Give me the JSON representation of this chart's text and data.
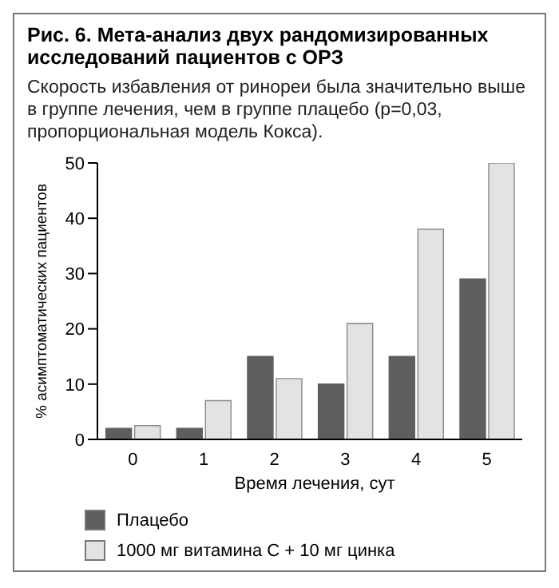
{
  "chart_data": {
    "type": "bar",
    "title": "Рис. 6. Мета-анализ двух рандомизированных исследований пациентов с ОРЗ",
    "subtitle": "Скорость избавления от ринореи была значительно выше в группе лечения, чем в группе плацебо (p=0,03, пропорциональная модель Кокса).",
    "xlabel": "Время лечения, сут",
    "ylabel": "% асимптоматических пациентов",
    "categories": [
      "0",
      "1",
      "2",
      "3",
      "4",
      "5"
    ],
    "series": [
      {
        "name": "Плацебо",
        "color": "#5e5e5e",
        "values": [
          2,
          2,
          15,
          10,
          15,
          29
        ]
      },
      {
        "name": "1000 мг витамина С + 10 мг цинка",
        "color": "#e3e3e3",
        "values": [
          2.5,
          7,
          11,
          21,
          38,
          50
        ]
      }
    ],
    "ylim": [
      0,
      50
    ],
    "yticks": [
      0,
      10,
      20,
      30,
      40,
      50
    ],
    "grid": false,
    "legend": "bottom left"
  }
}
